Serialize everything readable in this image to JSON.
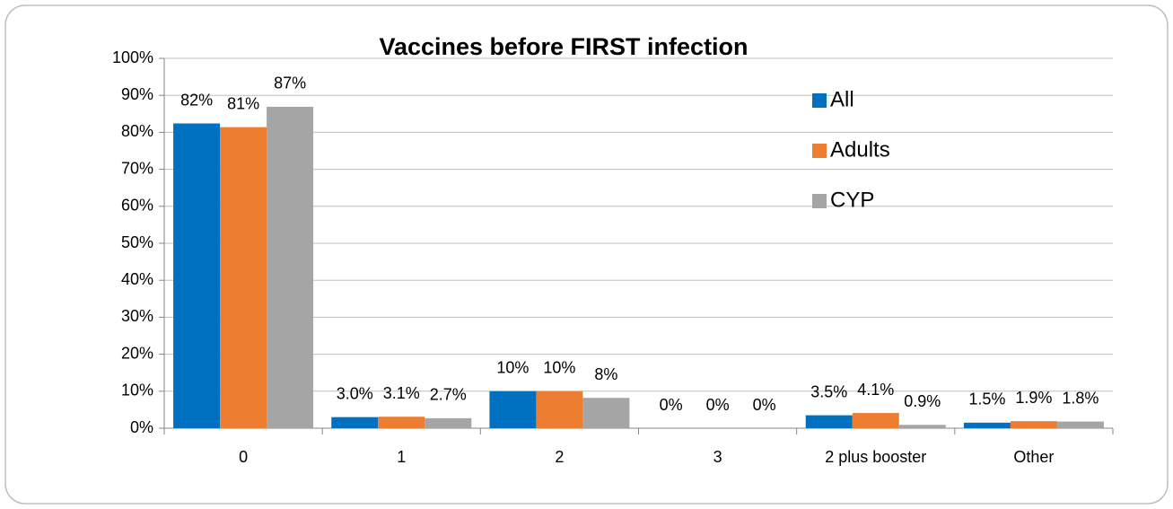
{
  "chart_data": {
    "type": "bar",
    "title": "Vaccines before FIRST infection",
    "categories": [
      "0",
      "1",
      "2",
      "3",
      "2 plus booster",
      "Other"
    ],
    "series": [
      {
        "name": "All",
        "color": "#0070c0",
        "values": [
          82.4,
          3.0,
          10,
          0,
          3.5,
          1.5
        ],
        "value_labels": [
          "82%",
          "3.0%",
          "10%",
          "0%",
          "3.5%",
          "1.5%"
        ]
      },
      {
        "name": "Adults",
        "color": "#ed7d31",
        "values": [
          81.4,
          3.1,
          10,
          0,
          4.1,
          1.9
        ],
        "value_labels": [
          "81%",
          "3.1%",
          "10%",
          "0%",
          "4.1%",
          "1.9%"
        ]
      },
      {
        "name": "CYP",
        "color": "#a5a5a5",
        "values": [
          86.9,
          2.7,
          8.2,
          0,
          0.9,
          1.8
        ],
        "value_labels": [
          "87%",
          "2.7%",
          "8%",
          "0%",
          "0.9%",
          "1.8%"
        ]
      }
    ],
    "ylim": [
      0,
      100
    ],
    "yticks": [
      {
        "value": 0,
        "label": "0%"
      },
      {
        "value": 10,
        "label": "10%"
      },
      {
        "value": 20,
        "label": "20%"
      },
      {
        "value": 30,
        "label": "30%"
      },
      {
        "value": 40,
        "label": "40%"
      },
      {
        "value": 50,
        "label": "50%"
      },
      {
        "value": 60,
        "label": "60%"
      },
      {
        "value": 70,
        "label": "70%"
      },
      {
        "value": 80,
        "label": "80%"
      },
      {
        "value": 90,
        "label": "90%"
      },
      {
        "value": 100,
        "label": "100%"
      }
    ],
    "grid": true,
    "legend": "upper-right"
  }
}
